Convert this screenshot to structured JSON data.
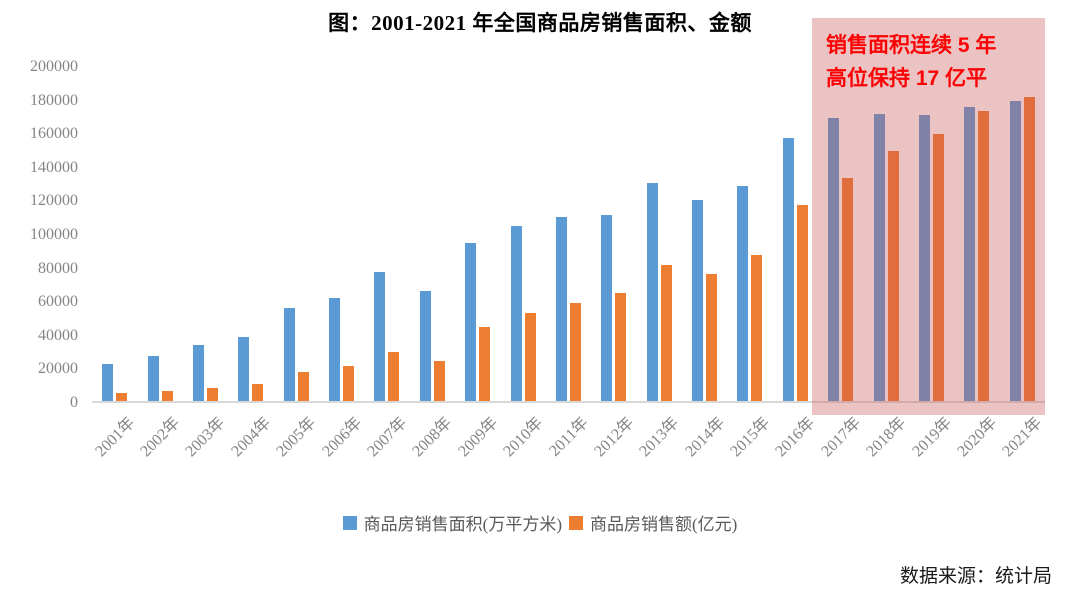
{
  "title": "图：2001-2021 年全国商品房销售面积、金额",
  "source": "数据来源：统计局",
  "annotation": {
    "line1": "销售面积连续 5 年",
    "line2": "高位保持 17 亿平"
  },
  "colors": {
    "area_bar": "#5b9bd5",
    "amount_bar": "#ed7d31",
    "highlight_overlay": "rgba(199, 82, 82, 0.35)",
    "annotation_text": "#fb0205",
    "axis_label": "#848484",
    "baseline": "#d9d9d9"
  },
  "chart_data": {
    "type": "bar",
    "title": "图：2001-2021 年全国商品房销售面积、金额",
    "categories": [
      "2001年",
      "2002年",
      "2003年",
      "2004年",
      "2005年",
      "2006年",
      "2007年",
      "2008年",
      "2009年",
      "2010年",
      "2011年",
      "2012年",
      "2013年",
      "2014年",
      "2015年",
      "2016年",
      "2017年",
      "2018年",
      "2019年",
      "2020年",
      "2021年"
    ],
    "series": [
      {
        "name": "商品房销售面积(万平方米)",
        "color": "#5b9bd5",
        "values": [
          22412,
          26808,
          33718,
          38232,
          55486,
          61857,
          77355,
          65970,
          94755,
          104765,
          109946,
          111304,
          130551,
          120649,
          128495,
          157349,
          169408,
          171654,
          171558,
          176086,
          179433
        ]
      },
      {
        "name": "商品房销售额(亿元)",
        "color": "#ed7d31",
        "values": [
          4863,
          6032,
          7956,
          10376,
          17576,
          20826,
          29604,
          24071,
          44355,
          52721,
          58589,
          64456,
          81428,
          76292,
          87281,
          117627,
          133701,
          149973,
          159725,
          173613,
          181930
        ]
      }
    ],
    "xlabel": "",
    "ylabel": "",
    "ylim": [
      0,
      200000
    ],
    "yticks": [
      0,
      20000,
      40000,
      60000,
      80000,
      100000,
      120000,
      140000,
      160000,
      180000,
      200000
    ],
    "grid": false,
    "legend_position": "bottom",
    "highlight": {
      "from_category": "2017年",
      "to_category": "2021年",
      "note": "销售面积连续 5 年高位保持 17 亿平"
    }
  }
}
